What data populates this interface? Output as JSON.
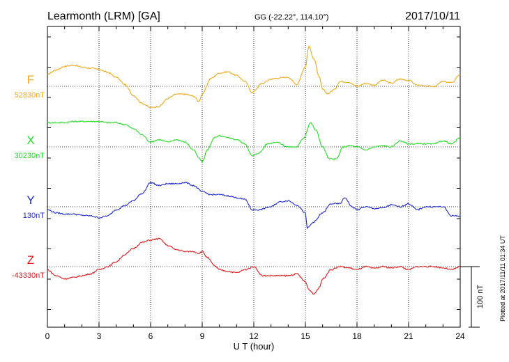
{
  "header": {
    "station": "Learmonth (LRM)  [GA]",
    "coords": "GG (-22.22°, 114.10°)",
    "date": "2017/10/11"
  },
  "side_note": "Plotted at 2017/11/11 01:34 UT",
  "scale_label": "100 nT",
  "chart_data": {
    "type": "line",
    "xlabel": "U T (hour)",
    "xlim": [
      0,
      24
    ],
    "xticks": [
      0,
      3,
      6,
      9,
      12,
      15,
      18,
      21,
      24
    ],
    "xtick_labels": [
      "0",
      "3",
      "6",
      "9",
      "12",
      "15",
      "18",
      "21",
      "24"
    ],
    "grid": true,
    "y_units": "nT",
    "scale_bar_nT": 100,
    "series": [
      {
        "name": "F",
        "baseline_label": "52830nT",
        "baseline": 52830,
        "color": "#f0a818",
        "x": [
          0,
          0.5,
          1,
          1.5,
          2,
          2.5,
          3,
          3.5,
          4,
          4.5,
          5,
          5.5,
          6,
          6.5,
          7,
          7.5,
          8,
          8.5,
          8.8,
          9,
          9.5,
          10,
          10.5,
          11,
          11.5,
          11.9,
          12.5,
          13,
          13.5,
          14,
          14.5,
          15,
          15.2,
          15.5,
          15.8,
          16,
          16.3,
          16.7,
          17,
          17.5,
          18,
          18.5,
          19,
          19.5,
          20,
          20.5,
          21,
          21.5,
          22,
          22.5,
          23,
          23.5,
          24
        ],
        "values": [
          20,
          27,
          33,
          35,
          32,
          30,
          28,
          23,
          15,
          3,
          -15,
          -28,
          -35,
          -33,
          -20,
          -13,
          -13,
          -16,
          -25,
          -13,
          13,
          22,
          24,
          18,
          8,
          -10,
          5,
          12,
          14,
          15,
          3,
          32,
          66,
          45,
          15,
          -5,
          -12,
          -5,
          8,
          7,
          0,
          5,
          2,
          10,
          5,
          12,
          10,
          2,
          0,
          0,
          8,
          6,
          20
        ]
      },
      {
        "name": "X",
        "baseline_label": "30230nT",
        "baseline": 30230,
        "color": "#22dd22",
        "x": [
          0,
          0.5,
          1,
          1.5,
          2,
          2.5,
          3,
          3.5,
          4,
          4.5,
          5,
          5.5,
          6,
          6.5,
          7,
          7.5,
          8,
          8.5,
          8.8,
          9,
          9.3,
          9.7,
          10,
          10.5,
          11,
          11.5,
          11.9,
          12.3,
          12.8,
          13.3,
          14,
          14.5,
          14.9,
          15.3,
          15.6,
          16,
          16.4,
          16.8,
          17.2,
          17.6,
          18,
          18.5,
          19,
          19.5,
          20,
          20.5,
          21,
          21.5,
          22,
          22.5,
          23,
          23.5,
          24
        ],
        "values": [
          40,
          40,
          40,
          42,
          42,
          42,
          42,
          40,
          40,
          37,
          30,
          20,
          8,
          12,
          8,
          12,
          8,
          -5,
          -18,
          -25,
          -5,
          15,
          18,
          15,
          12,
          5,
          -15,
          -10,
          5,
          8,
          0,
          0,
          15,
          40,
          28,
          0,
          -20,
          -20,
          0,
          2,
          0,
          -5,
          0,
          2,
          0,
          10,
          5,
          5,
          5,
          5,
          10,
          5,
          15
        ]
      },
      {
        "name": "Y",
        "baseline_label": "130nT",
        "baseline": 130,
        "color": "#1a28d0",
        "x": [
          0,
          0.5,
          1,
          1.5,
          2,
          2.5,
          3,
          3.5,
          4,
          4.5,
          5,
          5.5,
          6,
          6.5,
          7,
          7.5,
          8,
          8.5,
          9,
          9.5,
          10,
          10.5,
          11,
          11.5,
          11.9,
          12.3,
          13,
          13.5,
          14,
          14.5,
          15,
          15.1,
          15.5,
          16,
          16.5,
          17,
          17.3,
          17.7,
          18,
          18.5,
          19,
          19.5,
          20,
          20.5,
          21,
          21.5,
          22,
          22.5,
          23,
          23.5,
          24
        ],
        "values": [
          -5,
          -10,
          -12,
          -12,
          -14,
          -15,
          -18,
          -15,
          -5,
          2,
          10,
          22,
          40,
          35,
          38,
          38,
          40,
          35,
          25,
          20,
          20,
          18,
          15,
          12,
          -5,
          -5,
          0,
          8,
          10,
          3,
          -10,
          -35,
          -25,
          -10,
          5,
          5,
          15,
          0,
          -5,
          0,
          -3,
          -2,
          3,
          0,
          5,
          -5,
          0,
          0,
          0,
          -15,
          -15
        ]
      },
      {
        "name": "Z",
        "baseline_label": "-43330nT",
        "baseline": -43330,
        "color": "#e01818",
        "x": [
          0,
          0.5,
          1,
          1.5,
          2,
          2.5,
          3,
          3.5,
          4,
          4.5,
          5,
          5.5,
          6,
          6.5,
          7,
          7.5,
          8,
          8.5,
          8.8,
          9,
          9.3,
          9.7,
          10,
          10.5,
          11,
          11.5,
          12,
          12.5,
          13,
          13.5,
          14,
          14.5,
          15,
          15.2,
          15.5,
          15.8,
          16,
          16.5,
          17,
          17.5,
          18,
          18.5,
          19,
          19.5,
          20,
          20.5,
          21,
          21.5,
          22,
          22.5,
          23,
          23.5,
          24
        ],
        "values": [
          -5,
          -15,
          -20,
          -18,
          -15,
          -12,
          -5,
          0,
          8,
          20,
          30,
          40,
          44,
          46,
          35,
          28,
          25,
          25,
          22,
          25,
          15,
          2,
          -5,
          -8,
          -10,
          -5,
          0,
          -15,
          -15,
          -15,
          -15,
          -12,
          -25,
          -38,
          -45,
          -35,
          -20,
          -5,
          0,
          -2,
          -5,
          0,
          -3,
          0,
          -2,
          0,
          -5,
          0,
          0,
          0,
          -2,
          -5,
          0
        ]
      }
    ]
  }
}
